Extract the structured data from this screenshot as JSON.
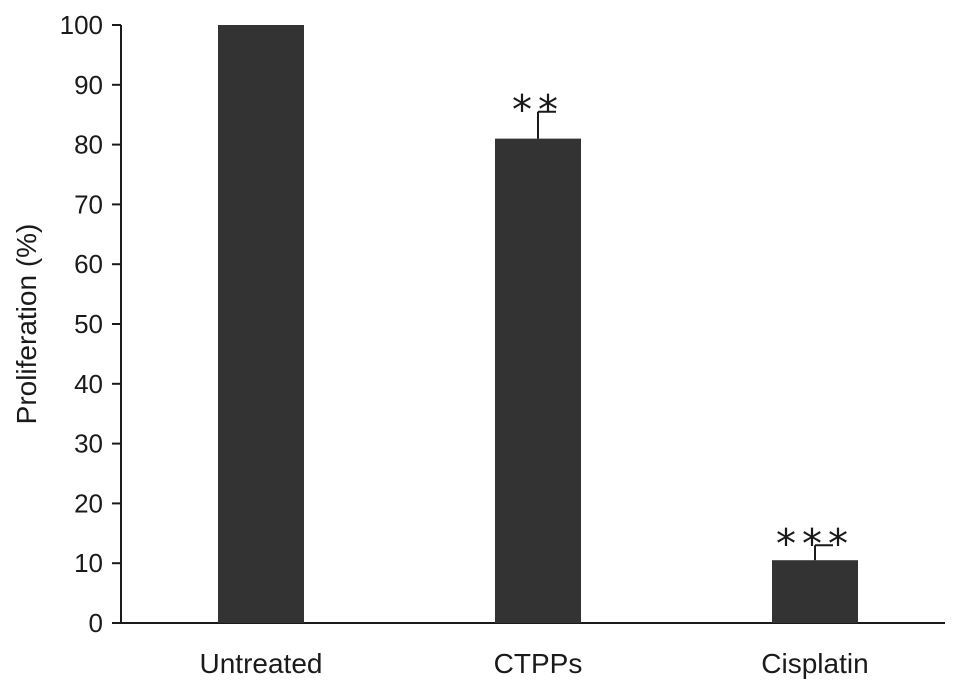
{
  "chart_data": {
    "type": "bar",
    "title": "",
    "xlabel": "",
    "ylabel": "Proliferation (%)",
    "ylim": [
      0,
      100
    ],
    "yticks": [
      0,
      10,
      20,
      30,
      40,
      50,
      60,
      70,
      80,
      90,
      100
    ],
    "categories": [
      "Untreated",
      "CTPPs",
      "Cisplatin"
    ],
    "values": [
      100,
      81,
      10.5
    ],
    "error_bars": [
      0,
      4.5,
      2.5
    ],
    "annotations": [
      "",
      "**",
      "***"
    ],
    "grid": false,
    "legend": "none",
    "bar_color": "#333333"
  }
}
